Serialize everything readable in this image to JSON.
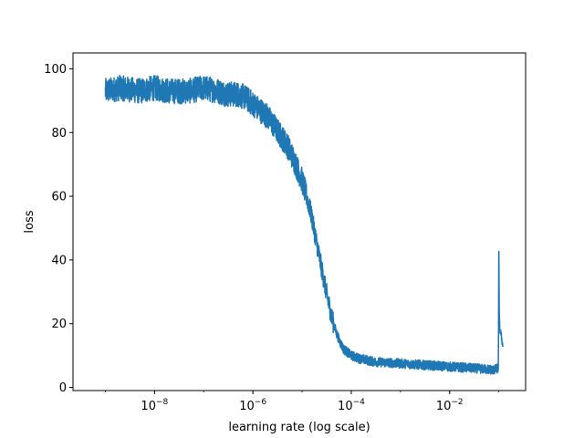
{
  "chart_data": {
    "type": "line",
    "title": "",
    "xlabel": "learning rate (log scale)",
    "ylabel": "loss",
    "xscale": "log",
    "xlim": [
      2.2e-10,
      0.35
    ],
    "ylim": [
      -1,
      105
    ],
    "grid": false,
    "legend": "none",
    "x_ticks": [
      {
        "base": "10",
        "exp": "−8",
        "value": 1e-08
      },
      {
        "base": "10",
        "exp": "−6",
        "value": 1e-06
      },
      {
        "base": "10",
        "exp": "−4",
        "value": 0.0001
      },
      {
        "base": "10",
        "exp": "−2",
        "value": 0.01
      }
    ],
    "y_ticks": [
      "0",
      "20",
      "40",
      "60",
      "80",
      "100"
    ],
    "series": [
      {
        "color": "#1f77b4",
        "note_points": "smoothed trend; the original line has heavy noise (±4) around these values",
        "x": [
          1e-09,
          2e-09,
          5e-09,
          1e-08,
          2e-08,
          5e-08,
          1e-07,
          2e-07,
          3e-07,
          5e-07,
          7e-07,
          1e-06,
          2e-06,
          3e-06,
          5e-06,
          7e-06,
          1e-05,
          1.5e-05,
          2e-05,
          3e-05,
          4e-05,
          5e-05,
          6e-05,
          7e-05,
          0.0001,
          0.00015,
          0.0003,
          0.001,
          0.003,
          0.01,
          0.03,
          0.08,
          0.098,
          0.1,
          0.102,
          0.105,
          0.11,
          0.115,
          0.12
        ],
        "y": [
          93,
          94,
          93,
          94,
          93,
          93,
          94,
          93,
          92,
          92,
          91,
          89,
          85,
          81,
          76,
          71,
          65,
          55,
          45,
          31,
          22,
          17,
          14,
          12,
          10,
          9,
          8,
          7.5,
          7,
          6.5,
          6,
          5.5,
          6,
          47,
          22,
          18,
          17,
          15,
          13
        ]
      }
    ]
  }
}
